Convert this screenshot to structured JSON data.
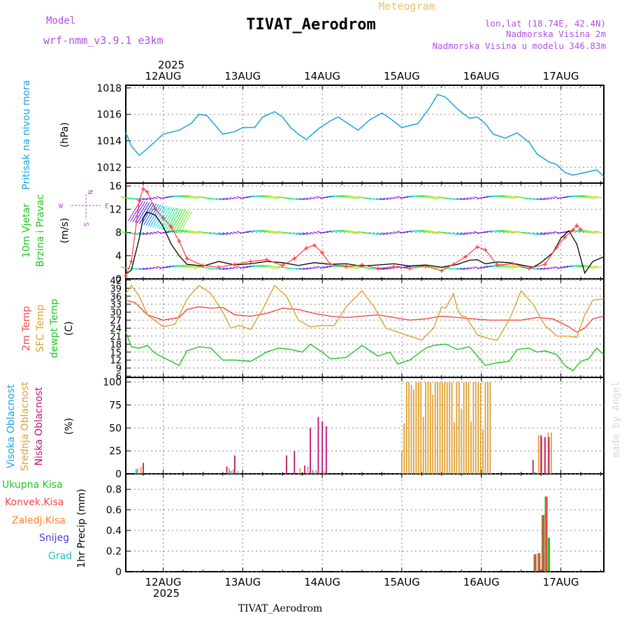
{
  "header": {
    "model_label": "Model",
    "model_name": "wrf-nmm_v3.9.1 e3km",
    "title": "TIVAT_Aerodrom",
    "subtitle": "Meteogram",
    "lonlat": "lon,lat (18.74E, 42.4N)",
    "elev": "Nadmorska Visina 2m",
    "model_elev": "Nadmorska Visina u modelu 346.83m",
    "bottom_title": "TIVAT_Aerodrom",
    "watermark": "made by Angel"
  },
  "colors": {
    "pressure": "#1ca3e0",
    "speed": "#000000",
    "gust": "#ff3b3b",
    "t2": "#f04848",
    "sfc": "#e0a030",
    "dew": "#22c422",
    "cloud_high": "#1ca3e0",
    "cloud_mid": "#e0a030",
    "cloud_low": "#c0127a",
    "rain_total": "#22c422",
    "rain_conv": "#f04848",
    "freezing": "#ff8030",
    "snow": "#4040e0",
    "hail": "#20c0c0",
    "purple": "#b050e0"
  },
  "time_axis": {
    "year": "2025",
    "start_day": 11.53,
    "end_day": 17.54,
    "labels": [
      "12AUG",
      "13AUG",
      "14AUG",
      "15AUG",
      "16AUG",
      "17AUG"
    ]
  },
  "panels": {
    "pressure": {
      "label": "Pritisak na nivou mora",
      "unit": "(hPa)"
    },
    "wind": {
      "label1": "10m Vjetar",
      "label2": "Brzina i Pravac",
      "unit": "(m/s)",
      "compass": [
        "N",
        "E",
        "S",
        "W"
      ]
    },
    "temp": {
      "label_t2": "2m Temp",
      "label_sfc": "SFC Temp",
      "label_dew": "dewpt Temp",
      "unit": "(C)"
    },
    "cloud": {
      "label_high": "Visoka Oblacnost",
      "label_mid": "Srednja Oblacnost",
      "label_low": "Niska Oblacnost",
      "unit": "(%)"
    },
    "precip": {
      "legend": [
        "Ukupna Kisa",
        "Konvek.Kisa",
        "Zaledj.Kisa",
        "Snijeg",
        "Grad"
      ],
      "unit": "1hr Precip (mm)"
    }
  },
  "chart_data": [
    {
      "type": "line",
      "name": "pressure",
      "title": "Pritisak na nivou mora",
      "ylabel": "(hPa)",
      "ylim": [
        1010.8,
        1018.2
      ],
      "yticks": [
        "1012",
        "1014",
        "1016",
        "1018"
      ],
      "ytick_values": [
        1012,
        1014,
        1016,
        1018
      ],
      "series": [
        {
          "name": "MSLP",
          "x": [
            11.53,
            11.6,
            11.7,
            11.8,
            12.0,
            12.2,
            12.35,
            12.45,
            12.55,
            12.65,
            12.75,
            12.9,
            13.0,
            13.15,
            13.25,
            13.4,
            13.5,
            13.6,
            13.7,
            13.75,
            13.8,
            13.95,
            14.1,
            14.2,
            14.3,
            14.45,
            14.6,
            14.75,
            14.85,
            15.0,
            15.2,
            15.35,
            15.45,
            15.55,
            15.7,
            15.85,
            15.95,
            16.05,
            16.15,
            16.3,
            16.45,
            16.6,
            16.7,
            16.85,
            16.95,
            17.05,
            17.15,
            17.3,
            17.45,
            17.54
          ],
          "y": [
            1014.6,
            1013.6,
            1012.9,
            1013.4,
            1014.5,
            1014.8,
            1015.3,
            1016.0,
            1015.9,
            1015.2,
            1014.5,
            1014.7,
            1015.0,
            1015.0,
            1015.8,
            1016.2,
            1015.8,
            1015.0,
            1014.5,
            1014.3,
            1014.1,
            1014.9,
            1015.5,
            1015.8,
            1015.4,
            1014.8,
            1015.6,
            1016.1,
            1015.7,
            1015.0,
            1015.3,
            1016.5,
            1017.5,
            1017.3,
            1016.4,
            1015.7,
            1015.8,
            1015.3,
            1014.5,
            1014.2,
            1014.6,
            1013.9,
            1013.0,
            1012.4,
            1012.2,
            1011.6,
            1011.4,
            1011.6,
            1011.8,
            1011.3
          ]
        }
      ]
    },
    {
      "type": "line",
      "name": "wind",
      "title": "10m Vjetar Brzina i Pravac",
      "ylabel": "(m/s)",
      "ylim": [
        0,
        16.5
      ],
      "yticks": [
        "0",
        "4",
        "8",
        "12",
        "16"
      ],
      "ytick_values": [
        0,
        4,
        8,
        12,
        16
      ],
      "series": [
        {
          "name": "speed",
          "x": [
            11.53,
            11.6,
            11.7,
            11.75,
            11.8,
            11.9,
            12.0,
            12.1,
            12.2,
            12.3,
            12.5,
            12.7,
            12.9,
            13.1,
            13.3,
            13.5,
            13.7,
            13.9,
            14.1,
            14.3,
            14.5,
            14.7,
            14.9,
            15.1,
            15.3,
            15.5,
            15.7,
            15.85,
            15.95,
            16.05,
            16.2,
            16.35,
            16.5,
            16.65,
            16.75,
            16.9,
            17.0,
            17.1,
            17.2,
            17.3,
            17.4,
            17.54
          ],
          "y": [
            0.8,
            1.5,
            7.0,
            10.5,
            11.5,
            11.0,
            9.0,
            6.0,
            4.0,
            2.5,
            2.2,
            3.0,
            2.4,
            2.6,
            3.0,
            2.8,
            2.3,
            2.8,
            2.5,
            2.6,
            2.2,
            2.4,
            2.6,
            2.2,
            2.4,
            2.0,
            2.5,
            3.2,
            3.3,
            2.6,
            2.9,
            2.8,
            2.4,
            2.0,
            2.8,
            4.5,
            7.0,
            8.3,
            6.0,
            1.0,
            3.0,
            3.8
          ]
        },
        {
          "name": "gust",
          "x": [
            11.53,
            11.6,
            11.7,
            11.75,
            11.8,
            11.9,
            12.0,
            12.1,
            12.2,
            12.3,
            12.5,
            12.7,
            12.9,
            13.1,
            13.3,
            13.5,
            13.65,
            13.8,
            13.9,
            14.0,
            14.1,
            14.3,
            14.5,
            14.7,
            14.9,
            15.1,
            15.3,
            15.5,
            15.65,
            15.8,
            15.95,
            16.05,
            16.2,
            16.4,
            16.6,
            16.8,
            16.95,
            17.05,
            17.15,
            17.2,
            17.25
          ],
          "y": [
            0.5,
            3.0,
            13.5,
            15.5,
            15.0,
            12.0,
            10.5,
            9.0,
            6.5,
            3.5,
            2.3,
            2.0,
            2.5,
            3.0,
            3.3,
            2.3,
            3.5,
            5.3,
            5.8,
            4.5,
            2.5,
            2.1,
            2.4,
            1.8,
            2.1,
            1.8,
            2.2,
            1.4,
            2.5,
            3.8,
            5.5,
            5.0,
            2.4,
            2.6,
            1.8,
            2.5,
            5.5,
            7.2,
            8.4,
            9.2,
            8.5
          ]
        }
      ]
    },
    {
      "type": "line",
      "name": "temperature",
      "title": "2m Temp / SFC Temp / dewpt Temp",
      "ylabel": "(C)",
      "ylim": [
        5.5,
        42.5
      ],
      "yticks": [
        "6",
        "9",
        "12",
        "15",
        "18",
        "21",
        "24",
        "27",
        "30",
        "33",
        "36",
        "39",
        "42"
      ],
      "ytick_values": [
        6,
        9,
        12,
        15,
        18,
        21,
        24,
        27,
        30,
        33,
        36,
        39,
        42
      ],
      "series": [
        {
          "name": "2m Temp",
          "x": [
            11.53,
            11.65,
            11.8,
            12.0,
            12.2,
            12.3,
            12.45,
            12.6,
            12.75,
            12.9,
            13.1,
            13.3,
            13.5,
            13.7,
            13.9,
            14.1,
            14.3,
            14.5,
            14.7,
            14.9,
            15.1,
            15.3,
            15.5,
            15.7,
            15.9,
            16.1,
            16.3,
            16.5,
            16.7,
            16.9,
            17.1,
            17.2,
            17.3,
            17.4,
            17.54
          ],
          "y": [
            34.5,
            33.5,
            29.0,
            27.0,
            28.0,
            31.0,
            32.0,
            31.5,
            31.8,
            29.0,
            28.5,
            29.5,
            31.5,
            31.0,
            29.5,
            28.5,
            28.0,
            28.5,
            29.0,
            28.0,
            27.0,
            27.5,
            28.5,
            28.0,
            27.5,
            27.0,
            27.0,
            27.0,
            28.0,
            27.5,
            24.5,
            22.5,
            24.0,
            27.5,
            28.5
          ]
        },
        {
          "name": "SFC Temp",
          "x": [
            11.53,
            11.6,
            11.7,
            11.8,
            12.0,
            12.15,
            12.3,
            12.45,
            12.6,
            12.75,
            12.85,
            12.95,
            13.1,
            13.25,
            13.4,
            13.55,
            13.7,
            13.85,
            14.0,
            14.15,
            14.3,
            14.5,
            14.65,
            14.8,
            14.95,
            15.1,
            15.25,
            15.4,
            15.5,
            15.55,
            15.65,
            15.7,
            15.75,
            15.8,
            15.95,
            16.1,
            16.2,
            16.35,
            16.5,
            16.65,
            16.8,
            16.95,
            17.1,
            17.2,
            17.3,
            17.4,
            17.54
          ],
          "y": [
            37.0,
            40.0,
            36.0,
            29.0,
            24.5,
            25.5,
            35.0,
            40.0,
            37.0,
            30.0,
            24.0,
            25.0,
            23.5,
            31.0,
            40.0,
            36.0,
            27.0,
            24.5,
            25.0,
            25.0,
            32.0,
            38.0,
            32.0,
            24.0,
            22.5,
            21.0,
            19.5,
            24.0,
            32.0,
            31.5,
            37.0,
            31.0,
            28.5,
            28.5,
            21.5,
            20.0,
            19.5,
            27.0,
            38.0,
            33.0,
            25.0,
            21.0,
            21.0,
            20.5,
            29.0,
            34.5,
            35.0
          ]
        },
        {
          "name": "dewpt Temp",
          "x": [
            11.53,
            11.6,
            11.7,
            11.8,
            11.9,
            12.0,
            12.1,
            12.2,
            12.3,
            12.45,
            12.6,
            12.75,
            12.9,
            13.1,
            13.3,
            13.45,
            13.6,
            13.75,
            13.85,
            14.0,
            14.1,
            14.3,
            14.5,
            14.7,
            14.85,
            14.95,
            15.1,
            15.3,
            15.4,
            15.55,
            15.7,
            15.85,
            15.95,
            16.05,
            16.2,
            16.35,
            16.45,
            16.6,
            16.7,
            16.8,
            16.95,
            17.05,
            17.15,
            17.25,
            17.35,
            17.45,
            17.54
          ],
          "y": [
            22.5,
            17.0,
            16.5,
            17.5,
            14.5,
            13.0,
            11.5,
            10.0,
            15.5,
            17.0,
            16.5,
            12.0,
            12.0,
            11.5,
            15.0,
            16.5,
            16.0,
            15.0,
            18.0,
            15.0,
            12.5,
            13.0,
            17.5,
            13.5,
            15.0,
            10.5,
            12.0,
            16.5,
            17.5,
            18.0,
            16.0,
            17.0,
            13.5,
            10.0,
            11.0,
            11.5,
            16.0,
            16.5,
            15.0,
            15.5,
            14.0,
            10.0,
            8.0,
            11.5,
            12.5,
            16.5,
            14.0
          ]
        }
      ]
    },
    {
      "type": "bar",
      "name": "cloud_cover",
      "title": "Visoka / Srednja / Niska Oblacnost",
      "ylabel": "(%)",
      "ylim": [
        0,
        105
      ],
      "yticks": [
        "0",
        "25",
        "50",
        "75",
        "100"
      ],
      "ytick_values": [
        0,
        25,
        50,
        75,
        100
      ],
      "series": [
        {
          "name": "Srednja Oblacnost",
          "x": [
            11.68,
            11.72,
            12.83,
            12.88,
            12.94,
            13.72,
            13.82,
            13.92,
            14.02,
            15.0,
            15.03,
            15.06,
            15.09,
            15.12,
            15.15,
            15.18,
            15.21,
            15.24,
            15.27,
            15.3,
            15.33,
            15.36,
            15.39,
            15.42,
            15.45,
            15.48,
            15.51,
            15.54,
            15.57,
            15.6,
            15.63,
            15.66,
            15.69,
            15.72,
            15.75,
            15.78,
            15.81,
            15.84,
            15.87,
            15.9,
            15.93,
            15.96,
            15.99,
            16.02,
            16.05,
            16.08,
            16.11,
            16.72,
            16.76,
            16.8,
            16.84,
            16.88
          ],
          "y": [
            6,
            8,
            6,
            5,
            3,
            6,
            8,
            4,
            3,
            25,
            55,
            100,
            100,
            97,
            92,
            100,
            100,
            100,
            62,
            100,
            100,
            100,
            86,
            100,
            100,
            100,
            100,
            100,
            100,
            100,
            100,
            56,
            100,
            100,
            71,
            100,
            100,
            100,
            57,
            100,
            100,
            100,
            99,
            48,
            100,
            100,
            100,
            42,
            40,
            40,
            45,
            45
          ]
        },
        {
          "name": "Niska Oblacnost",
          "x": [
            11.75,
            12.8,
            12.9,
            13.55,
            13.65,
            13.78,
            13.85,
            13.95,
            14.0,
            14.05,
            16.65,
            16.75,
            16.8,
            16.85
          ],
          "y": [
            12,
            8,
            20,
            20,
            25,
            9,
            50,
            62,
            57,
            52,
            15,
            42,
            40,
            40
          ]
        },
        {
          "name": "Visoka Oblacnost",
          "x": [
            11.66,
            12.85,
            13.88,
            16.67
          ],
          "y": [
            5,
            3,
            4,
            2
          ]
        }
      ]
    },
    {
      "type": "bar",
      "name": "precipitation",
      "title": "1hr Precip",
      "ylabel": "1hr Precip (mm)",
      "ylim": [
        0,
        0.95
      ],
      "yticks": [
        "0",
        "0.2",
        "0.4",
        "0.6",
        "0.8"
      ],
      "ytick_values": [
        0,
        0.2,
        0.4,
        0.6,
        0.8
      ],
      "series": [
        {
          "name": "Ukupna Kisa",
          "x": [
            16.67,
            16.72,
            16.77,
            16.81,
            16.85
          ],
          "y": [
            0.17,
            0.18,
            0.55,
            0.73,
            0.33
          ]
        },
        {
          "name": "Konvek.Kisa",
          "x": [
            16.68,
            16.73,
            16.78,
            16.82
          ],
          "y": [
            0.17,
            0.18,
            0.55,
            0.73
          ]
        }
      ]
    }
  ]
}
